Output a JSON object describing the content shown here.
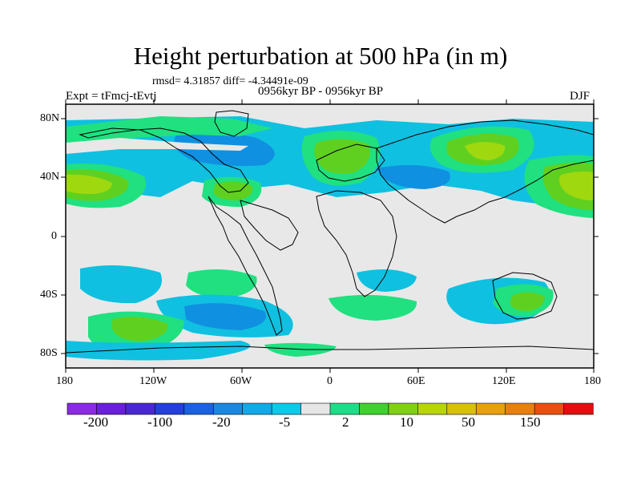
{
  "title": "Height perturbation at 500 hPa (in m)",
  "stats": "rmsd= 4.31857 diff= -4.34491e-09",
  "experiment": "Expt = tFmcj-tEvtj",
  "period": "0956kyr BP - 0956kyr BP",
  "season": "DJF",
  "colors": {
    "ocean_bg": "#e8e8e8",
    "neg1": "#10c0e0",
    "neg2": "#1090e0",
    "neg3": "#1060d0",
    "pos1": "#20e080",
    "pos2": "#60d020",
    "pos3": "#a0d810",
    "coast": "#000000"
  },
  "lat_ticks": [
    "80N",
    "40N",
    "0",
    "40S",
    "80S"
  ],
  "lon_ticks": [
    "180",
    "120W",
    "60W",
    "0",
    "60E",
    "120E",
    "180"
  ],
  "colorbar": {
    "colors": [
      "#8a2be2",
      "#6a1fd8",
      "#4a28d0",
      "#2440d8",
      "#1a62e0",
      "#1a88e0",
      "#14a8e8",
      "#10c8e8",
      "#e6e6e6",
      "#20dc88",
      "#40d030",
      "#80d018",
      "#b8d410",
      "#d8c010",
      "#e8a010",
      "#e88010",
      "#e85010",
      "#e01010"
    ],
    "labels": [
      "-200",
      "-100",
      "-20",
      "-5",
      "2",
      "10",
      "50",
      "150"
    ]
  }
}
